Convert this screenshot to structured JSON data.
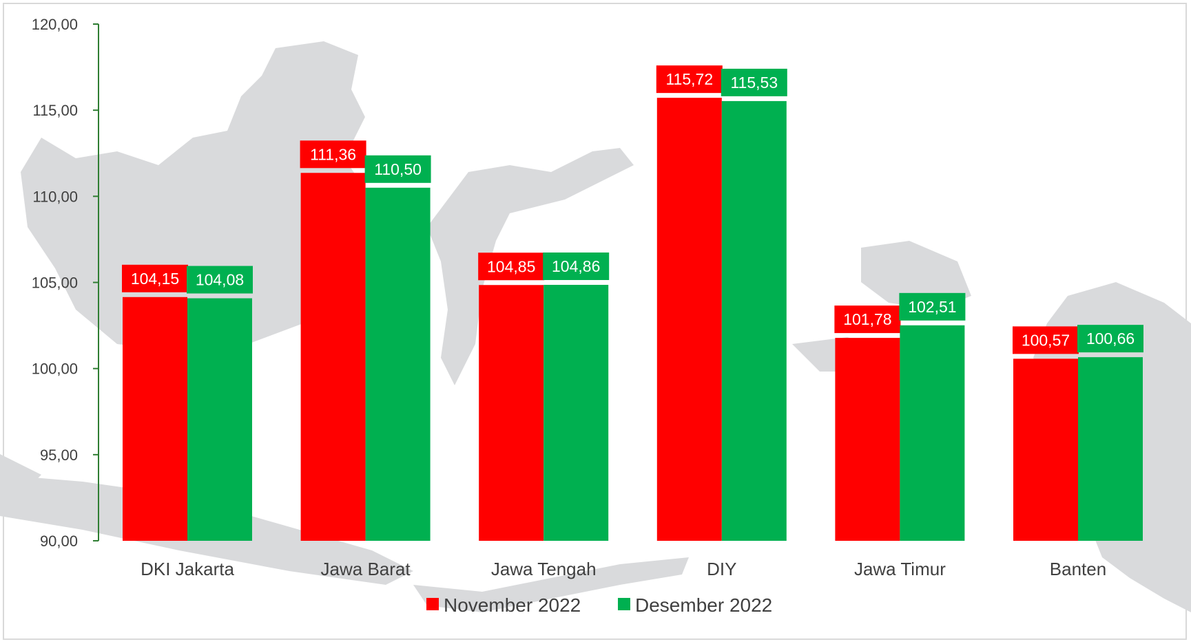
{
  "chart_data": {
    "type": "bar",
    "categories": [
      "DKI Jakarta",
      "Jawa Barat",
      "Jawa Tengah",
      "DIY",
      "Jawa Timur",
      "Banten"
    ],
    "series": [
      {
        "name": "November 2022",
        "color": "#ff0000",
        "values": [
          104.15,
          111.36,
          104.85,
          115.72,
          101.78,
          100.57
        ],
        "labels": [
          "104,15",
          "111,36",
          "104,85",
          "115,72",
          "101,78",
          "100,57"
        ]
      },
      {
        "name": "Desember 2022",
        "color": "#00b050",
        "values": [
          104.08,
          110.5,
          104.86,
          115.53,
          102.51,
          100.66
        ],
        "labels": [
          "104,08",
          "110,50",
          "104,86",
          "115,53",
          "102,51",
          "100,66"
        ]
      }
    ],
    "ylim": [
      90,
      120
    ],
    "yticks": [
      "90,00",
      "95,00",
      "100,00",
      "105,00",
      "110,00",
      "115,00",
      "120,00"
    ],
    "axis_color": "#2e7d32",
    "background": "grey map of Indonesia",
    "grid": false,
    "legend_position": "bottom"
  }
}
